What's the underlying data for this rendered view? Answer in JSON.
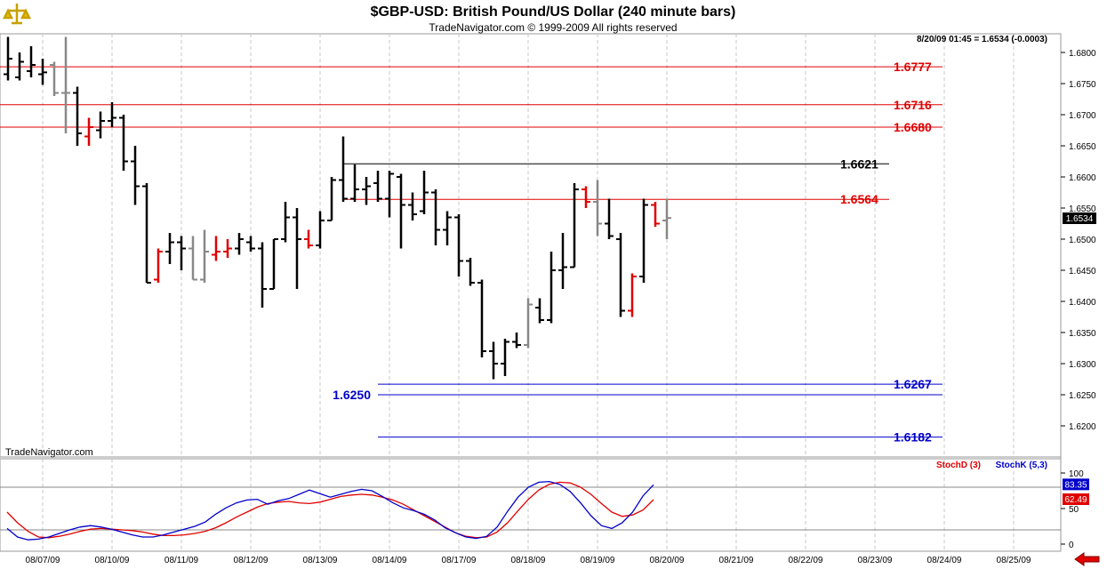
{
  "header": {
    "title": "$GBP-USD:  British Pound/US Dollar  (240 minute bars)",
    "subtitle": "TradeNavigator.com © 1999-2009 All rights reserved"
  },
  "watermark": "TradeNavigator.com",
  "quote": "8/20/09 01:45 = 1.6534 (-0.0003)",
  "current_price": "1.6534",
  "chart_data": [
    {
      "type": "ohlc",
      "ylim": [
        1.615,
        1.683
      ],
      "y_ticks": [
        "1.6800",
        "1.6750",
        "1.6700",
        "1.6650",
        "1.6600",
        "1.6550",
        "1.6500",
        "1.6450",
        "1.6400",
        "1.6350",
        "1.6300",
        "1.6250",
        "1.6200"
      ],
      "x_ticks": [
        "08/07/09",
        "08/10/09",
        "08/11/09",
        "08/12/09",
        "08/13/09",
        "08/14/09",
        "08/17/09",
        "08/18/09",
        "08/19/09",
        "08/20/09",
        "08/21/09",
        "08/22/09",
        "08/23/09",
        "08/24/09",
        "08/25/09"
      ],
      "series_colors": {
        "up": "#000000",
        "down_red": "#e00000",
        "neutral": "#888888"
      },
      "bars": [
        {
          "o": 1.6765,
          "h": 1.6825,
          "l": 1.6755,
          "c": 1.679,
          "k": "b"
        },
        {
          "o": 1.676,
          "h": 1.68,
          "l": 1.6755,
          "c": 1.6785,
          "k": "b"
        },
        {
          "o": 1.677,
          "h": 1.681,
          "l": 1.676,
          "c": 1.678,
          "k": "b"
        },
        {
          "o": 1.6765,
          "h": 1.679,
          "l": 1.6748,
          "c": 1.6768,
          "k": "b"
        },
        {
          "o": 1.678,
          "h": 1.6785,
          "l": 1.673,
          "c": 1.6735,
          "k": "g"
        },
        {
          "o": 1.6735,
          "h": 1.6825,
          "l": 1.667,
          "c": 1.6735,
          "k": "g"
        },
        {
          "o": 1.6735,
          "h": 1.6745,
          "l": 1.665,
          "c": 1.667,
          "k": "b"
        },
        {
          "o": 1.6665,
          "h": 1.6695,
          "l": 1.665,
          "c": 1.668,
          "k": "r"
        },
        {
          "o": 1.6675,
          "h": 1.6705,
          "l": 1.6662,
          "c": 1.669,
          "k": "b"
        },
        {
          "o": 1.669,
          "h": 1.672,
          "l": 1.668,
          "c": 1.6695,
          "k": "b"
        },
        {
          "o": 1.6695,
          "h": 1.67,
          "l": 1.661,
          "c": 1.6625,
          "k": "b"
        },
        {
          "o": 1.6625,
          "h": 1.665,
          "l": 1.6555,
          "c": 1.6585,
          "k": "b"
        },
        {
          "o": 1.6585,
          "h": 1.659,
          "l": 1.643,
          "c": 1.643,
          "k": "b"
        },
        {
          "o": 1.6435,
          "h": 1.6485,
          "l": 1.643,
          "c": 1.648,
          "k": "r"
        },
        {
          "o": 1.648,
          "h": 1.651,
          "l": 1.646,
          "c": 1.6495,
          "k": "b"
        },
        {
          "o": 1.6495,
          "h": 1.6505,
          "l": 1.645,
          "c": 1.6485,
          "k": "b"
        },
        {
          "o": 1.6485,
          "h": 1.6505,
          "l": 1.6435,
          "c": 1.6435,
          "k": "g"
        },
        {
          "o": 1.6435,
          "h": 1.6515,
          "l": 1.643,
          "c": 1.648,
          "k": "g"
        },
        {
          "o": 1.6475,
          "h": 1.6505,
          "l": 1.6465,
          "c": 1.648,
          "k": "r"
        },
        {
          "o": 1.648,
          "h": 1.65,
          "l": 1.647,
          "c": 1.6485,
          "k": "r"
        },
        {
          "o": 1.6485,
          "h": 1.651,
          "l": 1.6475,
          "c": 1.65,
          "k": "b"
        },
        {
          "o": 1.6495,
          "h": 1.6505,
          "l": 1.648,
          "c": 1.6485,
          "k": "b"
        },
        {
          "o": 1.6485,
          "h": 1.6495,
          "l": 1.639,
          "c": 1.642,
          "k": "b"
        },
        {
          "o": 1.642,
          "h": 1.65,
          "l": 1.642,
          "c": 1.65,
          "k": "b"
        },
        {
          "o": 1.65,
          "h": 1.656,
          "l": 1.6495,
          "c": 1.6535,
          "k": "b"
        },
        {
          "o": 1.6535,
          "h": 1.655,
          "l": 1.642,
          "c": 1.65,
          "k": "b"
        },
        {
          "o": 1.65,
          "h": 1.6515,
          "l": 1.6485,
          "c": 1.649,
          "k": "r"
        },
        {
          "o": 1.649,
          "h": 1.6545,
          "l": 1.6485,
          "c": 1.653,
          "k": "b"
        },
        {
          "o": 1.653,
          "h": 1.66,
          "l": 1.653,
          "c": 1.6595,
          "k": "b"
        },
        {
          "o": 1.6595,
          "h": 1.6665,
          "l": 1.656,
          "c": 1.6565,
          "k": "b"
        },
        {
          "o": 1.6565,
          "h": 1.662,
          "l": 1.656,
          "c": 1.658,
          "k": "b"
        },
        {
          "o": 1.658,
          "h": 1.66,
          "l": 1.6555,
          "c": 1.6585,
          "k": "b"
        },
        {
          "o": 1.659,
          "h": 1.661,
          "l": 1.656,
          "c": 1.6565,
          "k": "b"
        },
        {
          "o": 1.6565,
          "h": 1.661,
          "l": 1.6535,
          "c": 1.6605,
          "k": "b"
        },
        {
          "o": 1.66,
          "h": 1.6605,
          "l": 1.6485,
          "c": 1.6555,
          "k": "b"
        },
        {
          "o": 1.6555,
          "h": 1.6575,
          "l": 1.653,
          "c": 1.654,
          "k": "b"
        },
        {
          "o": 1.6545,
          "h": 1.661,
          "l": 1.654,
          "c": 1.6575,
          "k": "b"
        },
        {
          "o": 1.6575,
          "h": 1.658,
          "l": 1.649,
          "c": 1.6515,
          "k": "b"
        },
        {
          "o": 1.6515,
          "h": 1.6545,
          "l": 1.649,
          "c": 1.6535,
          "k": "b"
        },
        {
          "o": 1.6535,
          "h": 1.654,
          "l": 1.644,
          "c": 1.6465,
          "k": "b"
        },
        {
          "o": 1.6465,
          "h": 1.647,
          "l": 1.6425,
          "c": 1.643,
          "k": "b"
        },
        {
          "o": 1.643,
          "h": 1.6435,
          "l": 1.631,
          "c": 1.632,
          "k": "b"
        },
        {
          "o": 1.632,
          "h": 1.6335,
          "l": 1.6275,
          "c": 1.63,
          "k": "b"
        },
        {
          "o": 1.63,
          "h": 1.634,
          "l": 1.628,
          "c": 1.6335,
          "k": "b"
        },
        {
          "o": 1.6335,
          "h": 1.635,
          "l": 1.6325,
          "c": 1.633,
          "k": "b"
        },
        {
          "o": 1.633,
          "h": 1.6405,
          "l": 1.6325,
          "c": 1.6395,
          "k": "g"
        },
        {
          "o": 1.639,
          "h": 1.6405,
          "l": 1.6365,
          "c": 1.637,
          "k": "b"
        },
        {
          "o": 1.637,
          "h": 1.648,
          "l": 1.6365,
          "c": 1.645,
          "k": "b"
        },
        {
          "o": 1.645,
          "h": 1.651,
          "l": 1.642,
          "c": 1.6455,
          "k": "b"
        },
        {
          "o": 1.6455,
          "h": 1.659,
          "l": 1.6455,
          "c": 1.658,
          "k": "b"
        },
        {
          "o": 1.658,
          "h": 1.6585,
          "l": 1.655,
          "c": 1.656,
          "k": "r"
        },
        {
          "o": 1.656,
          "h": 1.6595,
          "l": 1.6505,
          "c": 1.6525,
          "k": "g"
        },
        {
          "o": 1.6525,
          "h": 1.6565,
          "l": 1.65,
          "c": 1.6505,
          "k": "b"
        },
        {
          "o": 1.65,
          "h": 1.651,
          "l": 1.6375,
          "c": 1.6385,
          "k": "b"
        },
        {
          "o": 1.6385,
          "h": 1.6445,
          "l": 1.6375,
          "c": 1.644,
          "k": "r"
        },
        {
          "o": 1.644,
          "h": 1.6565,
          "l": 1.643,
          "c": 1.6555,
          "k": "b"
        },
        {
          "o": 1.6555,
          "h": 1.656,
          "l": 1.652,
          "c": 1.6525,
          "k": "r"
        },
        {
          "o": 1.653,
          "h": 1.6565,
          "l": 1.65,
          "c": 1.6534,
          "k": "g"
        }
      ],
      "levels": [
        {
          "label": "1.6777",
          "value": 1.6777,
          "color": "#e00000"
        },
        {
          "label": "1.6716",
          "value": 1.6716,
          "color": "#e00000"
        },
        {
          "label": "1.6680",
          "value": 1.668,
          "color": "#e00000"
        },
        {
          "label": "1.6621",
          "value": 1.6621,
          "color": "#000000"
        },
        {
          "label": "1.6564",
          "value": 1.6564,
          "color": "#e00000"
        },
        {
          "label": "1.6267",
          "value": 1.6267,
          "color": "#0000cc"
        },
        {
          "label": "1.6250",
          "value": 1.625,
          "color": "#0000cc"
        },
        {
          "label": "1.6182",
          "value": 1.6182,
          "color": "#0000cc"
        }
      ]
    },
    {
      "type": "line",
      "ylim": [
        0,
        100
      ],
      "y_ticks": [
        "100",
        "50",
        "0"
      ],
      "reference_lines": [
        80,
        20
      ],
      "legend": [
        "StochD (3)",
        "StochK (5,3)"
      ],
      "series": [
        {
          "name": "StochD (3)",
          "color": "#e00000",
          "last_label": "62.49",
          "values": [
            45,
            30,
            18,
            10,
            9,
            11,
            14,
            18,
            21,
            22,
            21,
            20,
            19,
            17,
            14,
            12,
            12,
            13,
            15,
            18,
            23,
            30,
            38,
            45,
            52,
            57,
            59,
            60,
            58,
            57,
            59,
            63,
            67,
            69,
            70,
            69,
            66,
            62,
            56,
            48,
            40,
            32,
            24,
            16,
            11,
            9,
            10,
            17,
            30,
            47,
            63,
            76,
            84,
            87,
            86,
            80,
            70,
            57,
            45,
            39,
            41,
            48,
            62.5
          ]
        },
        {
          "name": "StochK (5,3)",
          "color": "#0000cc",
          "last_label": "83.35",
          "values": [
            22,
            10,
            6,
            7,
            10,
            15,
            20,
            24,
            26,
            24,
            21,
            17,
            13,
            10,
            10,
            13,
            17,
            21,
            25,
            31,
            42,
            51,
            58,
            62,
            63,
            56,
            61,
            64,
            70,
            76,
            71,
            66,
            70,
            74,
            77,
            75,
            67,
            58,
            51,
            47,
            42,
            34,
            23,
            16,
            10,
            8,
            11,
            24,
            46,
            66,
            80,
            87,
            88,
            84,
            74,
            58,
            40,
            26,
            22,
            30,
            45,
            68,
            83.35
          ]
        }
      ]
    }
  ]
}
